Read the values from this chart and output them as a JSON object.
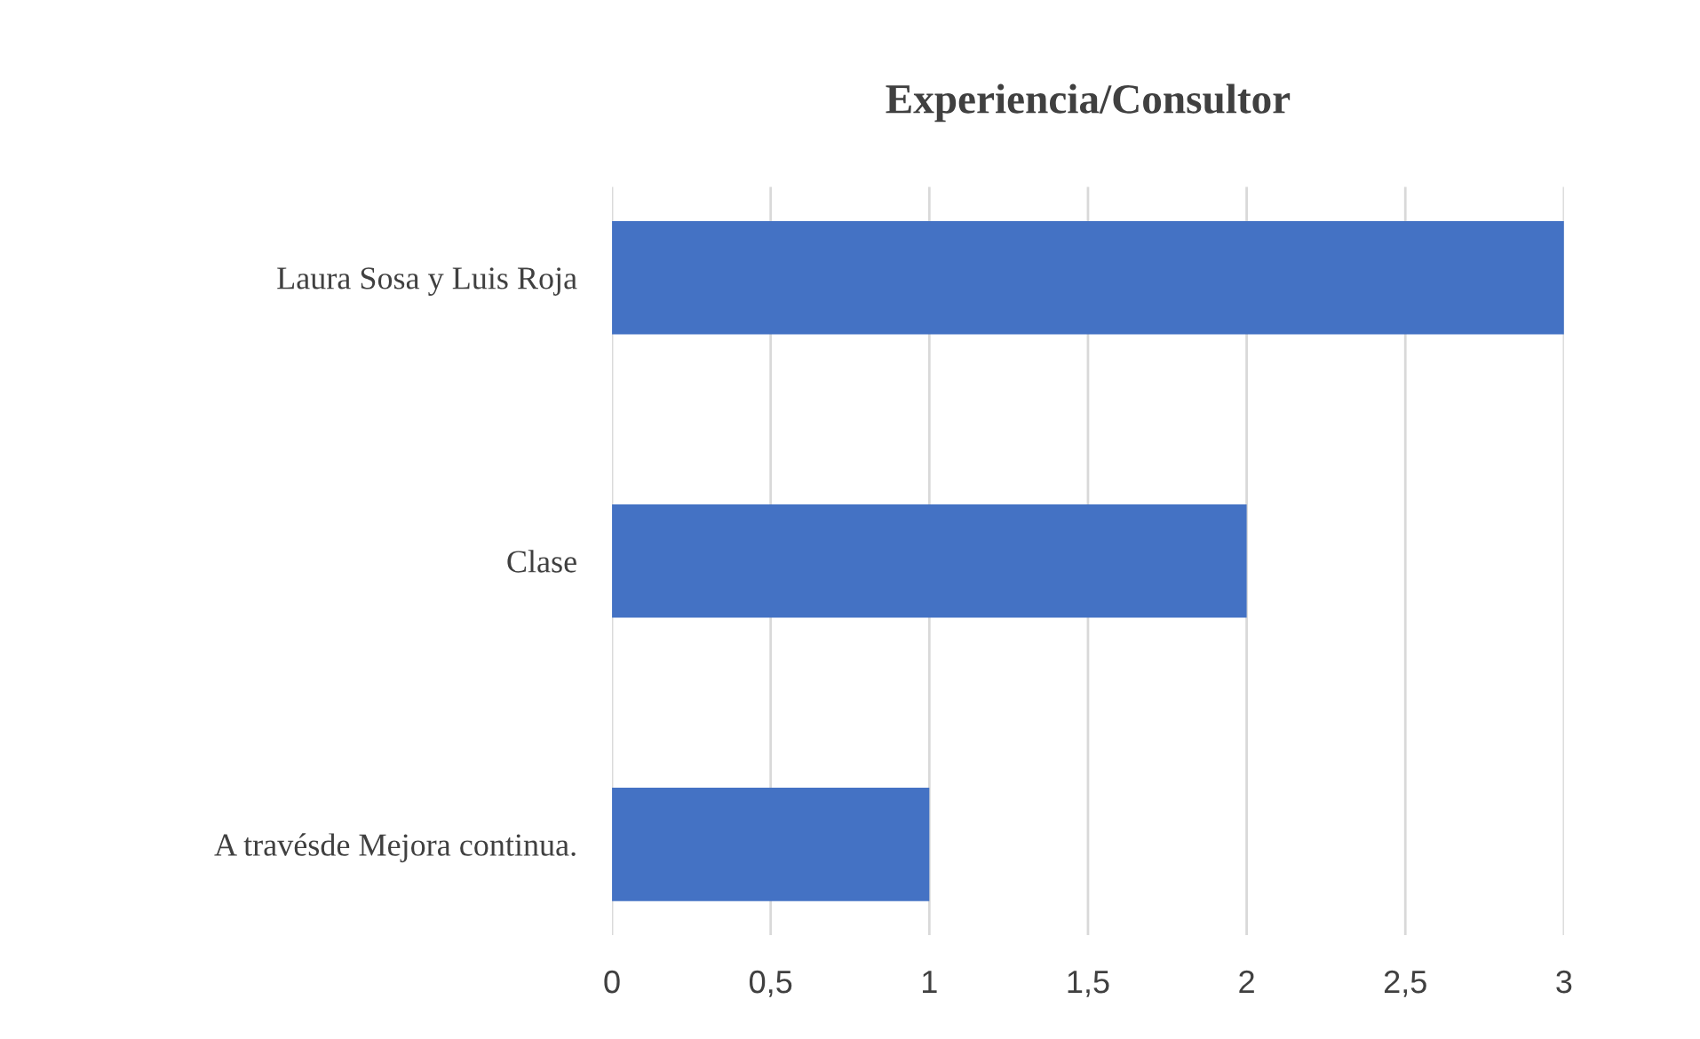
{
  "chart_data": {
    "type": "bar",
    "orientation": "horizontal",
    "title": "Experiencia/Consultor",
    "categories": [
      "Laura Sosa y Luis Roja",
      "Clase",
      "A travésde Mejora continua."
    ],
    "values": [
      3,
      2,
      1
    ],
    "color": "#4472c4",
    "xlim": [
      0,
      3
    ],
    "xticks": [
      0,
      {
        "value": 0.5,
        "label": "0,5"
      },
      1,
      {
        "value": 1.5,
        "label": "1,5"
      },
      2,
      {
        "value": 2.5,
        "label": "2,5"
      },
      3
    ],
    "grid": "x"
  }
}
